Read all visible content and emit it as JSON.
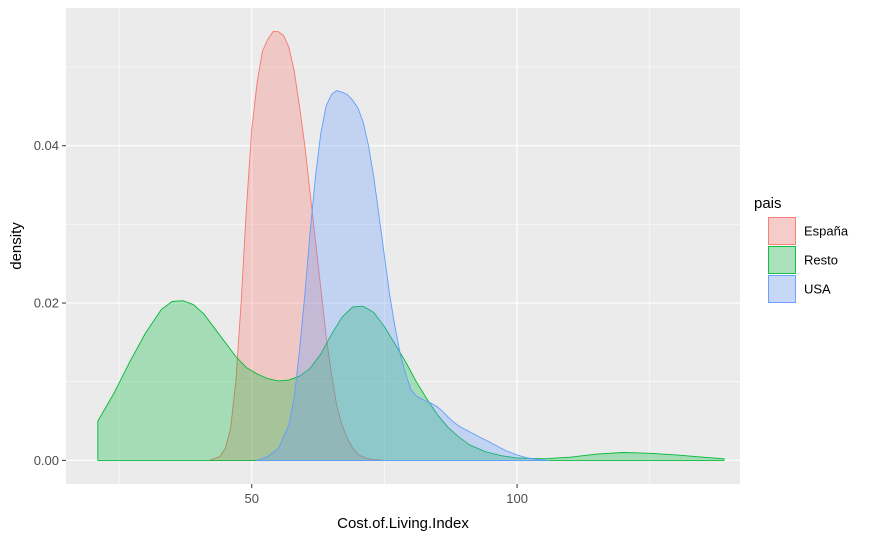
{
  "chart_data": {
    "type": "area",
    "subtype": "density",
    "xlabel": "Cost.of.Living.Index",
    "ylabel": "density",
    "xlim": [
      15,
      142
    ],
    "ylim": [
      -0.003,
      0.0575
    ],
    "x_ticks": [
      50,
      100
    ],
    "y_ticks": [
      0,
      0.02,
      0.04
    ],
    "y_tick_labels": [
      "0.00",
      "0.02",
      "0.04"
    ],
    "legend_title": "pais",
    "legend_position": "right",
    "grid": true,
    "series": [
      {
        "name": "España",
        "color": "#F8766D",
        "x": [
          42,
          44,
          45,
          46,
          47,
          48,
          49,
          50,
          51,
          52,
          53,
          54,
          55,
          56,
          57,
          58,
          59,
          60,
          61,
          62,
          63,
          64,
          65,
          66,
          67,
          68,
          69,
          70,
          71,
          72,
          73,
          74,
          75
        ],
        "values": [
          0,
          0.0005,
          0.0015,
          0.004,
          0.01,
          0.02,
          0.032,
          0.042,
          0.048,
          0.052,
          0.0535,
          0.0545,
          0.0545,
          0.054,
          0.0525,
          0.0495,
          0.045,
          0.04,
          0.034,
          0.028,
          0.022,
          0.016,
          0.011,
          0.007,
          0.0045,
          0.0028,
          0.0016,
          0.0008,
          0.0004,
          0.0002,
          0.0001,
          5e-05,
          0
        ]
      },
      {
        "name": "Resto",
        "color": "#00BA38",
        "x": [
          21,
          24,
          27,
          30,
          33,
          35,
          37,
          39,
          41,
          43,
          45,
          47,
          49,
          51,
          53,
          55,
          57,
          59,
          61,
          63,
          65,
          67,
          69,
          71,
          73,
          75,
          77,
          79,
          81,
          83,
          85,
          87,
          89,
          91,
          94,
          97,
          100,
          105,
          110,
          115,
          120,
          125,
          130,
          135,
          139
        ],
        "values": [
          0.005,
          0.0085,
          0.0125,
          0.0162,
          0.0192,
          0.0202,
          0.0203,
          0.0198,
          0.0186,
          0.0168,
          0.015,
          0.0132,
          0.0118,
          0.011,
          0.0104,
          0.0101,
          0.0102,
          0.0107,
          0.0117,
          0.0135,
          0.016,
          0.0182,
          0.0195,
          0.0196,
          0.0188,
          0.017,
          0.0148,
          0.0125,
          0.01,
          0.0078,
          0.0058,
          0.0042,
          0.003,
          0.002,
          0.0011,
          0.0006,
          0.0003,
          0.0002,
          0.0004,
          0.0008,
          0.001,
          0.0009,
          0.0007,
          0.0004,
          0.0002
        ]
      },
      {
        "name": "USA",
        "color": "#619CFF",
        "x": [
          51,
          53,
          55,
          57,
          58,
          59,
          60,
          61,
          62,
          63,
          64,
          65,
          66,
          67,
          68,
          69,
          70,
          71,
          72,
          73,
          74,
          75,
          76,
          77,
          78,
          79,
          80,
          81,
          82,
          83,
          84,
          85,
          86,
          87,
          88,
          89,
          90,
          92,
          94,
          96,
          98,
          100,
          102,
          104,
          106
        ],
        "values": [
          0,
          0.0005,
          0.0015,
          0.0045,
          0.008,
          0.014,
          0.021,
          0.029,
          0.036,
          0.0415,
          0.045,
          0.0465,
          0.047,
          0.0468,
          0.0465,
          0.0458,
          0.0448,
          0.043,
          0.04,
          0.036,
          0.031,
          0.026,
          0.021,
          0.017,
          0.0135,
          0.011,
          0.009,
          0.0082,
          0.0078,
          0.0075,
          0.0072,
          0.0068,
          0.0062,
          0.0055,
          0.0049,
          0.0044,
          0.004,
          0.0033,
          0.0026,
          0.0019,
          0.0012,
          0.0007,
          0.0003,
          0.0001,
          0
        ]
      }
    ]
  }
}
